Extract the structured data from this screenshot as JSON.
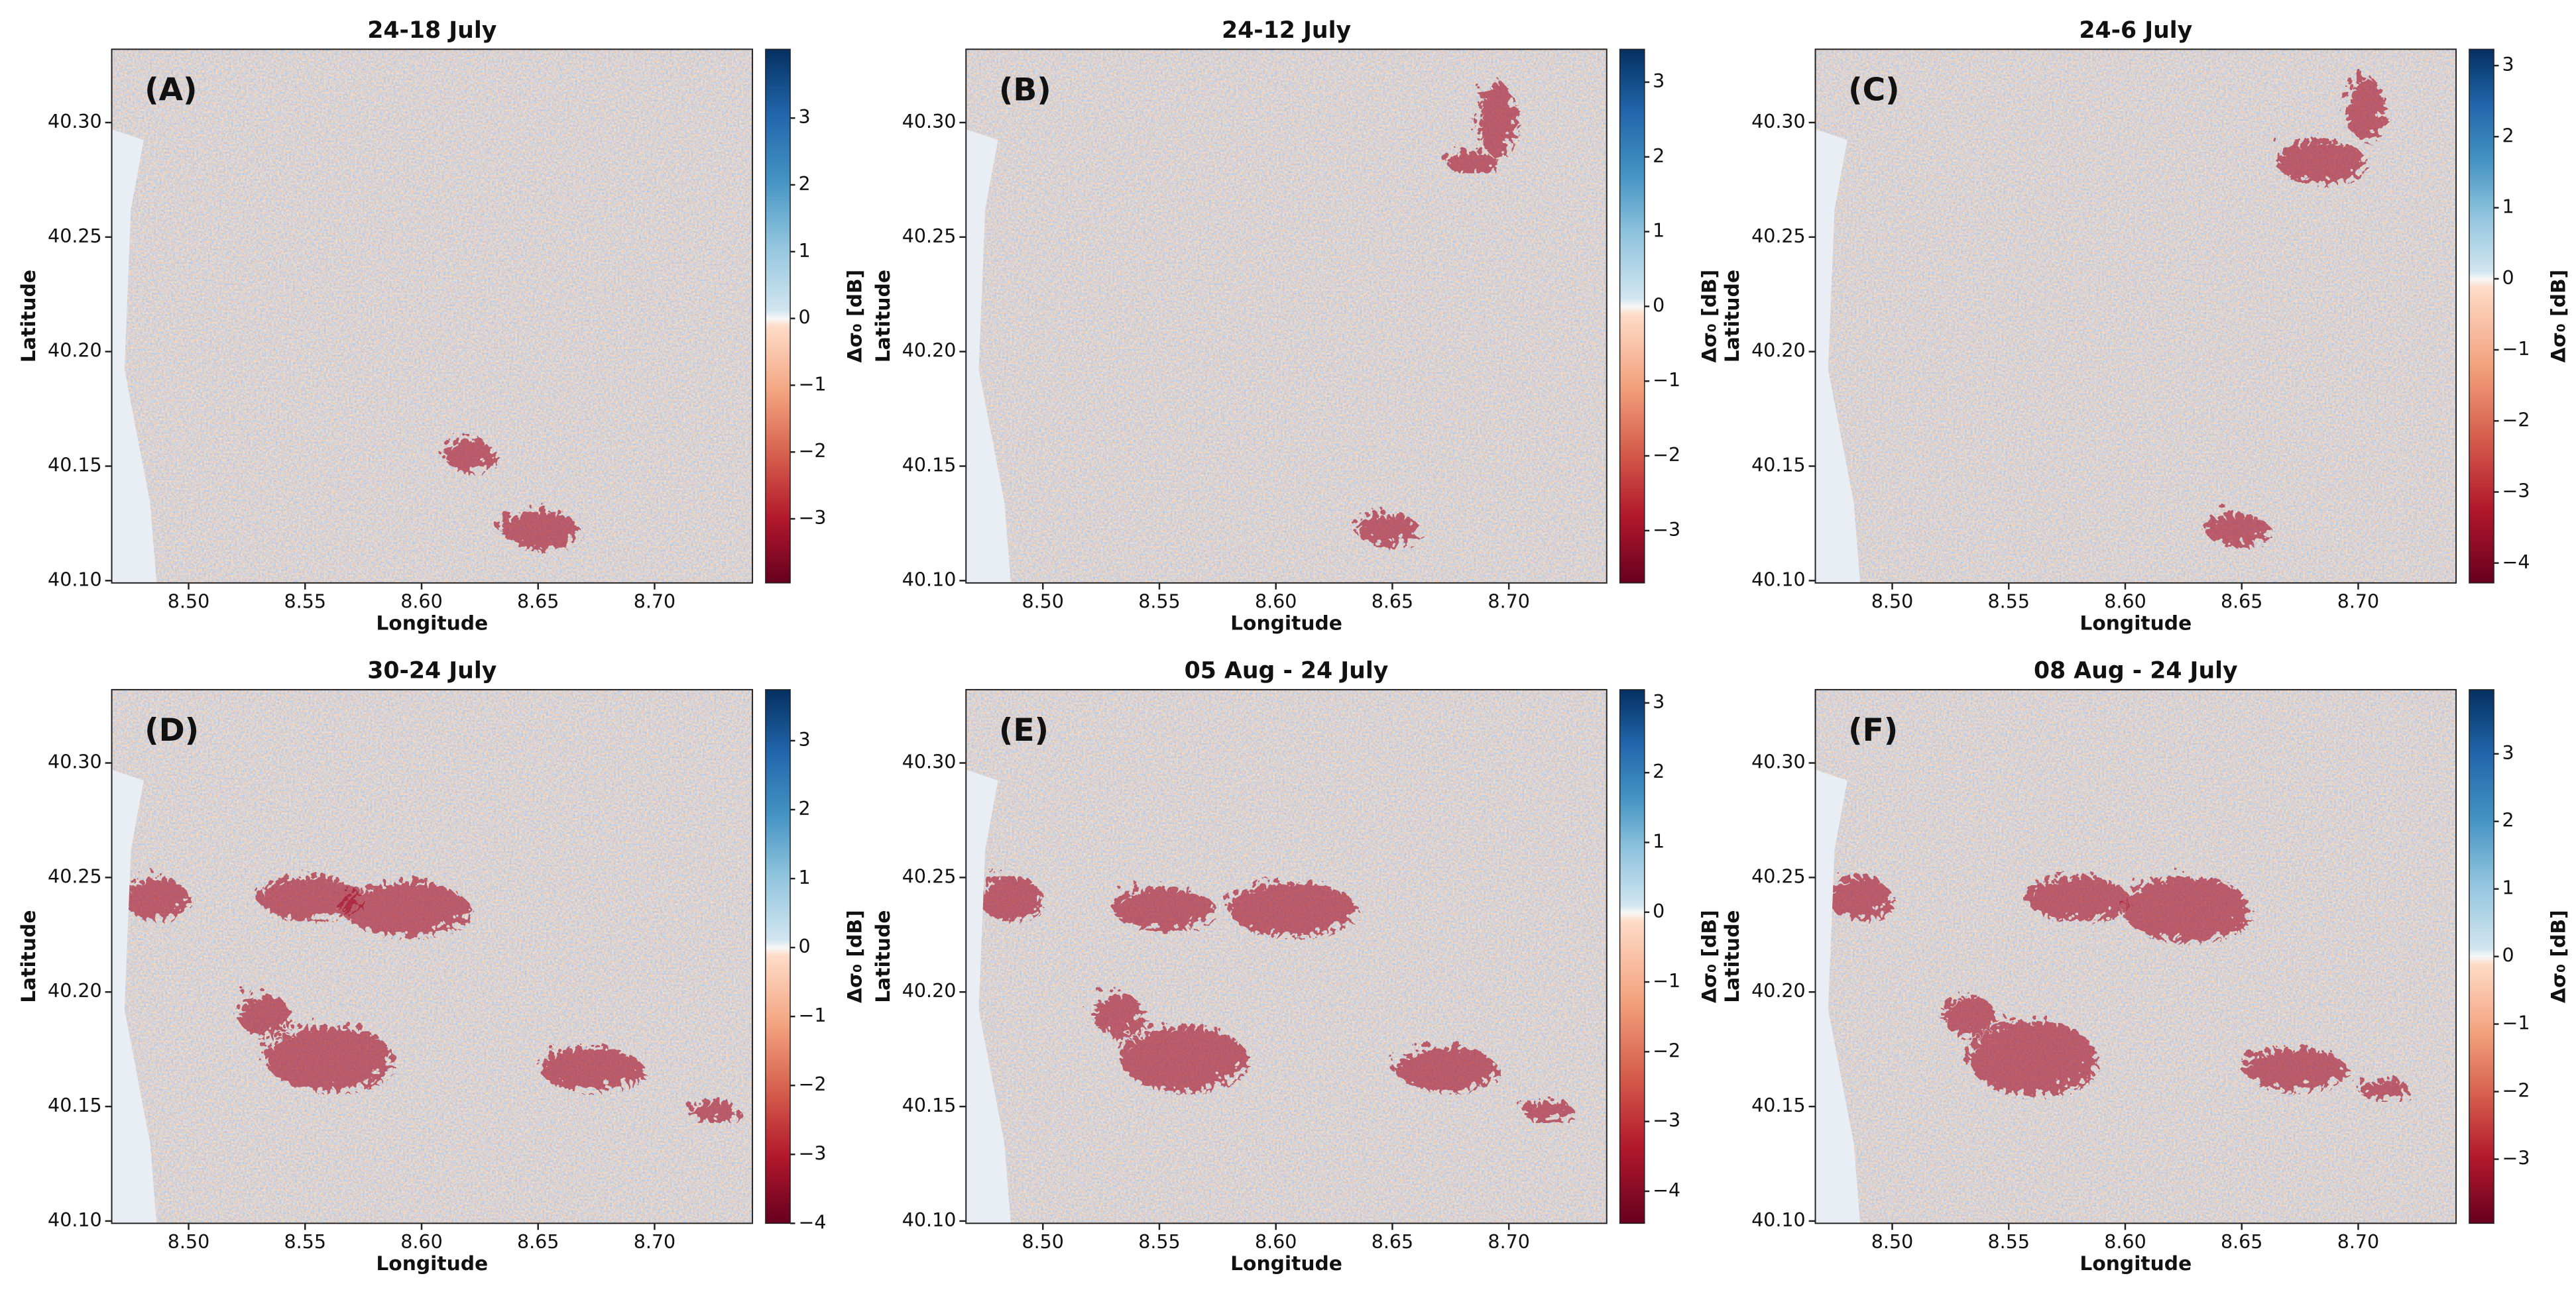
{
  "chart_data": [
    {
      "type": "heatmap",
      "title": "24-18 July",
      "label": "(A)",
      "xlabel": "Longitude",
      "ylabel": "Latitude",
      "xlim": [
        8.467,
        8.742
      ],
      "ylim": [
        40.099,
        40.332
      ],
      "xticks": [
        {
          "value": 8.5,
          "label": "8.50"
        },
        8.55,
        {
          "value": 8.6,
          "label": "8.60"
        },
        8.65,
        {
          "value": 8.7,
          "label": "8.70"
        }
      ],
      "yticks": [
        {
          "value": 40.1,
          "label": "40.10"
        },
        40.15,
        {
          "value": 40.2,
          "label": "40.20"
        },
        40.25,
        {
          "value": 40.3,
          "label": "40.30"
        }
      ],
      "colorbar": {
        "label": "Δσ₀ [dB]",
        "clim": [
          -3.96,
          4.03
        ],
        "ticks": [
          {
            "value": -3,
            "label": "−3"
          },
          {
            "value": -2,
            "label": "−2"
          },
          {
            "value": -1,
            "label": "−1"
          },
          0,
          1,
          2,
          3
        ]
      }
    },
    {
      "type": "heatmap",
      "title": "24-12 July",
      "label": "(B)",
      "xlabel": "Longitude",
      "ylabel": "Latitude",
      "xlim": [
        8.467,
        8.742
      ],
      "ylim": [
        40.099,
        40.332
      ],
      "xticks": [
        {
          "value": 8.5,
          "label": "8.50"
        },
        8.55,
        {
          "value": 8.6,
          "label": "8.60"
        },
        8.65,
        {
          "value": 8.7,
          "label": "8.70"
        }
      ],
      "yticks": [
        {
          "value": 40.1,
          "label": "40.10"
        },
        40.15,
        {
          "value": 40.2,
          "label": "40.20"
        },
        40.25,
        {
          "value": 40.3,
          "label": "40.30"
        }
      ],
      "colorbar": {
        "label": "Δσ₀ [dB]",
        "clim": [
          -3.7,
          3.44
        ],
        "ticks": [
          {
            "value": -3,
            "label": "−3"
          },
          {
            "value": -2,
            "label": "−2"
          },
          {
            "value": -1,
            "label": "−1"
          },
          0,
          1,
          2,
          3
        ]
      }
    },
    {
      "type": "heatmap",
      "title": "24-6 July",
      "label": "(C)",
      "xlabel": "Longitude",
      "ylabel": "Latitude",
      "xlim": [
        8.467,
        8.742
      ],
      "ylim": [
        40.099,
        40.332
      ],
      "xticks": [
        {
          "value": 8.5,
          "label": "8.50"
        },
        8.55,
        {
          "value": 8.6,
          "label": "8.60"
        },
        8.65,
        {
          "value": 8.7,
          "label": "8.70"
        }
      ],
      "yticks": [
        {
          "value": 40.1,
          "label": "40.10"
        },
        40.15,
        {
          "value": 40.2,
          "label": "40.20"
        },
        40.25,
        {
          "value": 40.3,
          "label": "40.30"
        }
      ],
      "colorbar": {
        "label": "Δσ₀ [dB]",
        "clim": [
          -4.28,
          3.23
        ],
        "ticks": [
          {
            "value": -4,
            "label": "−4"
          },
          {
            "value": -3,
            "label": "−3"
          },
          {
            "value": -2,
            "label": "−2"
          },
          {
            "value": -1,
            "label": "−1"
          },
          0,
          1,
          2,
          3
        ]
      }
    },
    {
      "type": "heatmap",
      "title": "30-24 July",
      "label": "(D)",
      "xlabel": "Longitude",
      "ylabel": "Latitude",
      "xlim": [
        8.467,
        8.742
      ],
      "ylim": [
        40.099,
        40.332
      ],
      "xticks": [
        {
          "value": 8.5,
          "label": "8.50"
        },
        8.55,
        {
          "value": 8.6,
          "label": "8.60"
        },
        8.65,
        {
          "value": 8.7,
          "label": "8.70"
        }
      ],
      "yticks": [
        {
          "value": 40.1,
          "label": "40.10"
        },
        40.15,
        {
          "value": 40.2,
          "label": "40.20"
        },
        40.25,
        {
          "value": 40.3,
          "label": "40.30"
        }
      ],
      "colorbar": {
        "label": "Δσ₀ [dB]",
        "clim": [
          -4.0,
          3.74
        ],
        "ticks": [
          {
            "value": -4,
            "label": "−4"
          },
          {
            "value": -3,
            "label": "−3"
          },
          {
            "value": -2,
            "label": "−2"
          },
          {
            "value": -1,
            "label": "−1"
          },
          0,
          1,
          2,
          3
        ]
      }
    },
    {
      "type": "heatmap",
      "title": "05 Aug - 24 July",
      "label": "(E)",
      "xlabel": "Longitude",
      "ylabel": "Latitude",
      "xlim": [
        8.467,
        8.742
      ],
      "ylim": [
        40.099,
        40.332
      ],
      "xticks": [
        {
          "value": 8.5,
          "label": "8.50"
        },
        8.55,
        {
          "value": 8.6,
          "label": "8.60"
        },
        8.65,
        {
          "value": 8.7,
          "label": "8.70"
        }
      ],
      "yticks": [
        {
          "value": 40.1,
          "label": "40.10"
        },
        40.15,
        {
          "value": 40.2,
          "label": "40.20"
        },
        40.25,
        {
          "value": 40.3,
          "label": "40.30"
        }
      ],
      "colorbar": {
        "label": "Δσ₀ [dB]",
        "clim": [
          -4.46,
          3.19
        ],
        "ticks": [
          {
            "value": -4,
            "label": "−4"
          },
          {
            "value": -3,
            "label": "−3"
          },
          {
            "value": -2,
            "label": "−2"
          },
          {
            "value": -1,
            "label": "−1"
          },
          0,
          1,
          2,
          3
        ]
      }
    },
    {
      "type": "heatmap",
      "title": "08 Aug - 24 July",
      "label": "(F)",
      "xlabel": "Longitude",
      "ylabel": "Latitude",
      "xlim": [
        8.467,
        8.742
      ],
      "ylim": [
        40.099,
        40.332
      ],
      "xticks": [
        {
          "value": 8.5,
          "label": "8.50"
        },
        8.55,
        {
          "value": 8.6,
          "label": "8.60"
        },
        8.65,
        {
          "value": 8.7,
          "label": "8.70"
        }
      ],
      "yticks": [
        {
          "value": 40.1,
          "label": "40.10"
        },
        40.15,
        {
          "value": 40.2,
          "label": "40.20"
        },
        40.25,
        {
          "value": 40.3,
          "label": "40.30"
        }
      ],
      "colorbar": {
        "label": "Δσ₀ [dB]",
        "clim": [
          -3.95,
          3.95
        ],
        "ticks": [
          {
            "value": -3,
            "label": "−3"
          },
          {
            "value": -2,
            "label": "−2"
          },
          {
            "value": -1,
            "label": "−1"
          },
          0,
          1,
          2,
          3
        ]
      }
    }
  ]
}
